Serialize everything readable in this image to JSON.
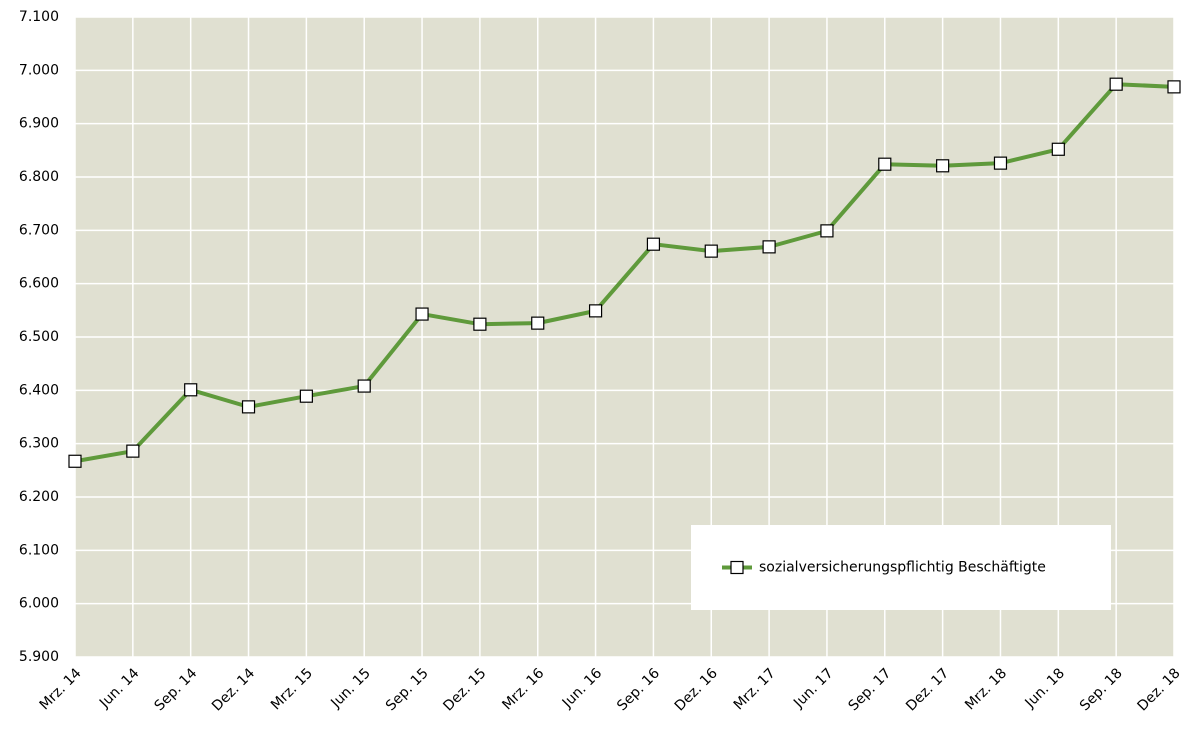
{
  "chart_data": {
    "type": "line",
    "categories": [
      "Mrz. 14",
      "Jun. 14",
      "Sep. 14",
      "Dez. 14",
      "Mrz. 15",
      "Jun. 15",
      "Sep. 15",
      "Dez. 15",
      "Mrz. 16",
      "Jun. 16",
      "Sep. 16",
      "Dez. 16",
      "Mrz. 17",
      "Jun. 17",
      "Sep. 17",
      "Dez. 17",
      "Mrz. 18",
      "Jun. 18",
      "Sep. 18",
      "Dez. 18"
    ],
    "series": [
      {
        "name": "sozialversicherungspflichtig Beschäftigte",
        "color": "#5f9a3b",
        "values": [
          6267,
          6286,
          6401,
          6369,
          6389,
          6408,
          6543,
          6524,
          6526,
          6549,
          6674,
          6661,
          6669,
          6699,
          6824,
          6821,
          6826,
          6852,
          6974,
          6969
        ]
      }
    ],
    "ylim": [
      5900,
      7100
    ],
    "yticks": [
      {
        "value": 5900,
        "label": "5.900"
      },
      {
        "value": 6000,
        "label": "6.000"
      },
      {
        "value": 6100,
        "label": "6.100"
      },
      {
        "value": 6200,
        "label": "6.200"
      },
      {
        "value": 6300,
        "label": "6.300"
      },
      {
        "value": 6400,
        "label": "6.400"
      },
      {
        "value": 6500,
        "label": "6.500"
      },
      {
        "value": 6600,
        "label": "6.600"
      },
      {
        "value": 6700,
        "label": "6.700"
      },
      {
        "value": 6800,
        "label": "6.800"
      },
      {
        "value": 6900,
        "label": "6.900"
      },
      {
        "value": 7000,
        "label": "7.000"
      },
      {
        "value": 7100,
        "label": "7.100"
      }
    ],
    "grid": true,
    "legend": "lower right"
  }
}
